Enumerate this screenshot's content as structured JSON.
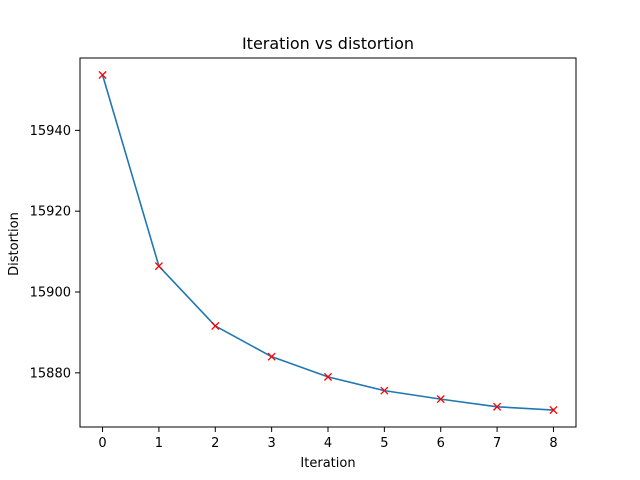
{
  "chart_data": {
    "type": "line",
    "title": "Iteration vs distortion",
    "xlabel": "Iteration",
    "ylabel": "Distortion",
    "x": [
      0,
      1,
      2,
      3,
      4,
      5,
      6,
      7,
      8
    ],
    "series": [
      {
        "values": [
          15953.7,
          15906.4,
          15891.6,
          15884.0,
          15879.0,
          15875.6,
          15873.5,
          15871.6,
          15870.8
        ],
        "line_color": "#1f77b4",
        "marker": "x",
        "marker_color": "#ff0000"
      }
    ],
    "xlim": [
      -0.4,
      8.4
    ],
    "ylim": [
      15866.6,
      15957.9
    ],
    "xticks": [
      0,
      1,
      2,
      3,
      4,
      5,
      6,
      7,
      8
    ],
    "yticks": [
      15880,
      15900,
      15920,
      15940
    ],
    "grid": false,
    "legend": "none"
  }
}
